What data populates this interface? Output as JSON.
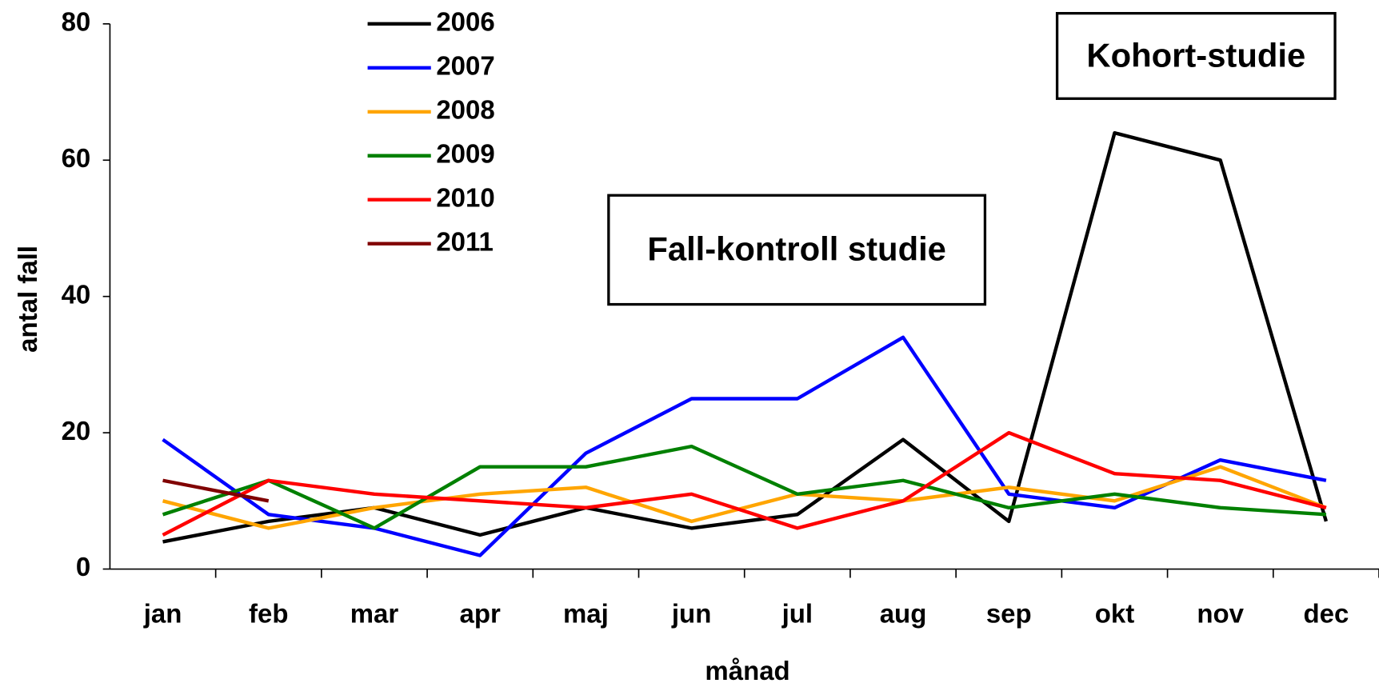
{
  "chart_data": {
    "type": "line",
    "xlabel": "månad",
    "ylabel": "antal fall",
    "categories": [
      "jan",
      "feb",
      "mar",
      "apr",
      "maj",
      "jun",
      "jul",
      "aug",
      "sep",
      "okt",
      "nov",
      "dec"
    ],
    "series": [
      {
        "name": "2006",
        "color": "#000000",
        "values": [
          4,
          7,
          9,
          5,
          9,
          6,
          8,
          19,
          7,
          64,
          60,
          7
        ]
      },
      {
        "name": "2007",
        "color": "#0000ff",
        "values": [
          19,
          8,
          6,
          2,
          17,
          25,
          25,
          34,
          11,
          9,
          16,
          13
        ]
      },
      {
        "name": "2008",
        "color": "#ffa500",
        "values": [
          10,
          6,
          9,
          11,
          12,
          7,
          11,
          10,
          12,
          10,
          15,
          9
        ]
      },
      {
        "name": "2009",
        "color": "#008000",
        "values": [
          8,
          13,
          6,
          15,
          15,
          18,
          11,
          13,
          9,
          11,
          9,
          8
        ]
      },
      {
        "name": "2010",
        "color": "#ff0000",
        "values": [
          5,
          13,
          11,
          10,
          9,
          11,
          6,
          10,
          20,
          14,
          13,
          9
        ]
      },
      {
        "name": "2011",
        "color": "#800000",
        "values": [
          13,
          10,
          null,
          null,
          null,
          null,
          null,
          null,
          null,
          null,
          null,
          null
        ]
      }
    ],
    "ylim": [
      0,
      80
    ],
    "yticks": [
      0,
      20,
      40,
      60,
      80
    ],
    "annotations": [
      "Kohort-studie",
      "Fall-kontroll studie"
    ]
  }
}
